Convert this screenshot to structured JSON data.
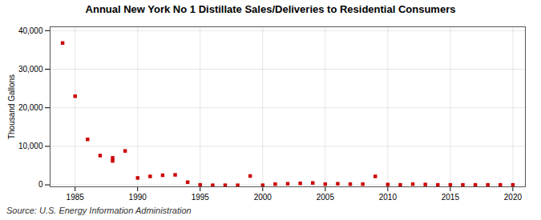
{
  "chart_data": {
    "type": "scatter",
    "title": "Annual New York No 1 Distillate Sales/Deliveries to Residential Consumers",
    "ylabel": "Thousand Gallons",
    "source": "Source: U.S. Energy Information Administration",
    "color": "#cc0000",
    "marker": "square",
    "grid": true,
    "xlim": [
      1983,
      2021
    ],
    "xticks": [
      1985,
      1990,
      1995,
      2000,
      2005,
      2010,
      2015,
      2020
    ],
    "ylim": [
      -500,
      41000
    ],
    "yticks": [
      0,
      {
        "value": 10000,
        "label": "10,000"
      },
      {
        "value": 20000,
        "label": "20,000"
      },
      {
        "value": 30000,
        "label": "30,000"
      },
      {
        "value": 40000,
        "label": "40,000"
      }
    ],
    "x": [
      1984,
      1985,
      1986,
      1987,
      1988,
      1988,
      1989,
      1990,
      1991,
      1992,
      1993,
      1994,
      1995,
      1996,
      1997,
      1998,
      1999,
      2000,
      2001,
      2002,
      2003,
      2004,
      2005,
      2006,
      2007,
      2008,
      2009,
      2010,
      2011,
      2012,
      2013,
      2014,
      2015,
      2016,
      2017,
      2018,
      2019,
      2020
    ],
    "values": [
      36800,
      23000,
      11800,
      7600,
      6200,
      7000,
      8800,
      1800,
      2200,
      2500,
      2600,
      700,
      0,
      -100,
      -100,
      -100,
      2300,
      -100,
      200,
      300,
      400,
      500,
      200,
      300,
      200,
      200,
      2200,
      100,
      0,
      200,
      100,
      0,
      0,
      0,
      0,
      0,
      0,
      0
    ]
  }
}
